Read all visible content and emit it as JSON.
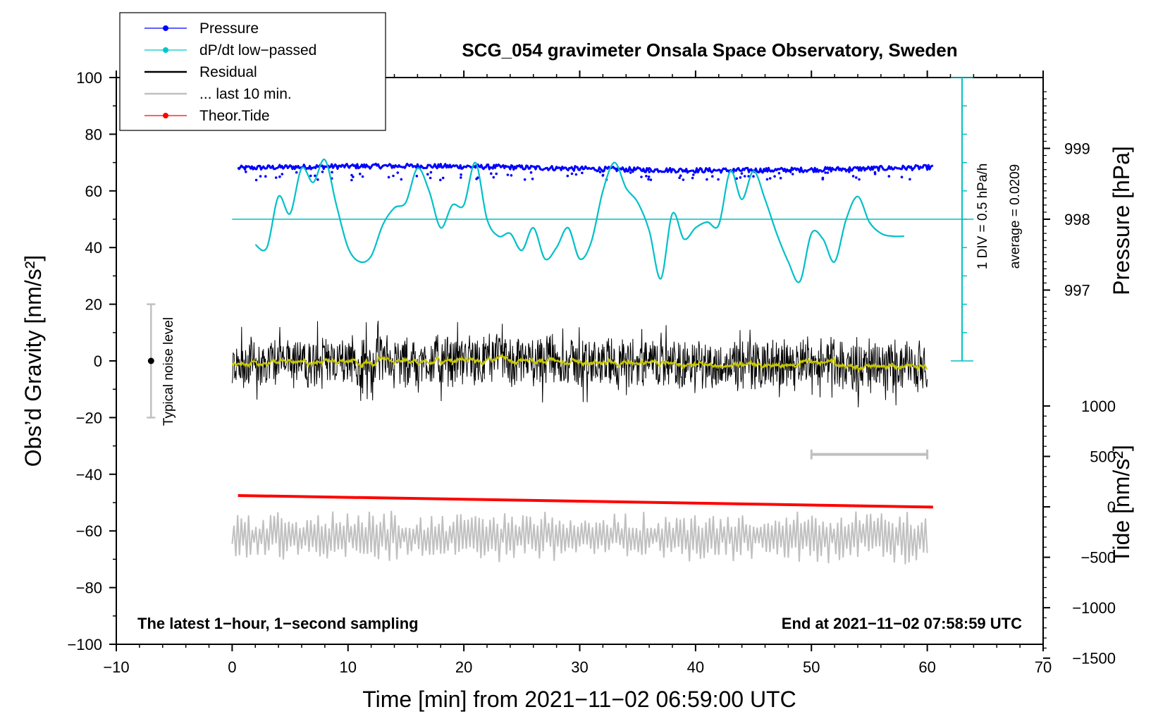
{
  "chart_data": {
    "type": "line",
    "title": "SCG_054 gravimeter Onsala Space Observatory, Sweden",
    "xlabel": "Time [min] from 2021−11−02 06:59:00 UTC",
    "ylabel_left": "Obs’d Gravity [nm/s²]",
    "ylabel_right_pressure": "Pressure [hPa]",
    "ylabel_right_tide": "Tide [nm/s²]",
    "xlim": [
      -10,
      70
    ],
    "ylim": [
      -100,
      100
    ],
    "x_ticks": [
      "−10",
      "0",
      "10",
      "20",
      "30",
      "40",
      "50",
      "60",
      "70"
    ],
    "y_ticks": [
      "−100",
      "−80",
      "−60",
      "−40",
      "−20",
      "0",
      "20",
      "40",
      "60",
      "80",
      "100"
    ],
    "pressure_ticks": [
      "997",
      "998",
      "999"
    ],
    "pressure_range": [
      997,
      999
    ],
    "tide_ticks": [
      "−1500",
      "−1000",
      "−500",
      "0",
      "500",
      "1000"
    ],
    "tide_range": [
      -1500,
      1000
    ],
    "legend": [
      {
        "label": "Pressure",
        "color": "#0000ff",
        "marker": true
      },
      {
        "label": "dP/dt low−passed",
        "color": "#00c8c8",
        "marker": true
      },
      {
        "label": "Residual",
        "color": "#000000",
        "marker": false
      },
      {
        "label": "... last 10 min.",
        "color": "#c0c0c0",
        "marker": false
      },
      {
        "label": "Theor.Tide",
        "color": "#ff0000",
        "marker": true
      }
    ],
    "notes": {
      "left": "The latest 1−hour, 1−second sampling",
      "right": "End at 2021−11−02 07:58:59 UTC"
    },
    "dpdt_scale_label": "1 DIV = 0.5 hPa/h",
    "dpdt_average_label": "average = 0.0209",
    "noise_label": "Typical noise level",
    "series": [
      {
        "name": "Pressure",
        "color": "#0000ff",
        "x_range": [
          0.5,
          60.5
        ],
        "approx_value_hPa": 998.72
      },
      {
        "name": "dP/dt low−passed",
        "color": "#00c8c8",
        "x": [
          2,
          3,
          4,
          5,
          6,
          7,
          8,
          9,
          10,
          11,
          12,
          13,
          14,
          15,
          16,
          17,
          18,
          19,
          20,
          21,
          22,
          23,
          24,
          25,
          26,
          27,
          28,
          29,
          30,
          31,
          32,
          33,
          34,
          35,
          36,
          37,
          38,
          39,
          40,
          41,
          42,
          43,
          44,
          45,
          46,
          47,
          48,
          49,
          50,
          51,
          52,
          53,
          54,
          55,
          56,
          57,
          58
        ],
        "values_on_gravity_axis": [
          41,
          40,
          58,
          52,
          68,
          63,
          71,
          55,
          40,
          35,
          37,
          48,
          54,
          56,
          68,
          60,
          47,
          55,
          55,
          70,
          50,
          44,
          45,
          39,
          47,
          36,
          40,
          47,
          36,
          42,
          60,
          70,
          61,
          56,
          46,
          29,
          52,
          43,
          47,
          49,
          48,
          67,
          57,
          67,
          57,
          45,
          35,
          28,
          45,
          43,
          35,
          50,
          58,
          49,
          45,
          44,
          44
        ]
      },
      {
        "name": "Residual",
        "color": "#000000",
        "x_range": [
          0,
          60
        ],
        "approx_range": [
          -17,
          15
        ]
      },
      {
        "name": "... last 10 min.",
        "color": "#c0c0c0",
        "x_range": [
          0,
          60
        ],
        "approx_range": [
          -73,
          -51
        ]
      },
      {
        "name": "Theor.Tide",
        "color": "#ff0000",
        "x": [
          0.5,
          60.5
        ],
        "values_on_gravity_axis": [
          -47.5,
          -51.6
        ]
      }
    ]
  }
}
